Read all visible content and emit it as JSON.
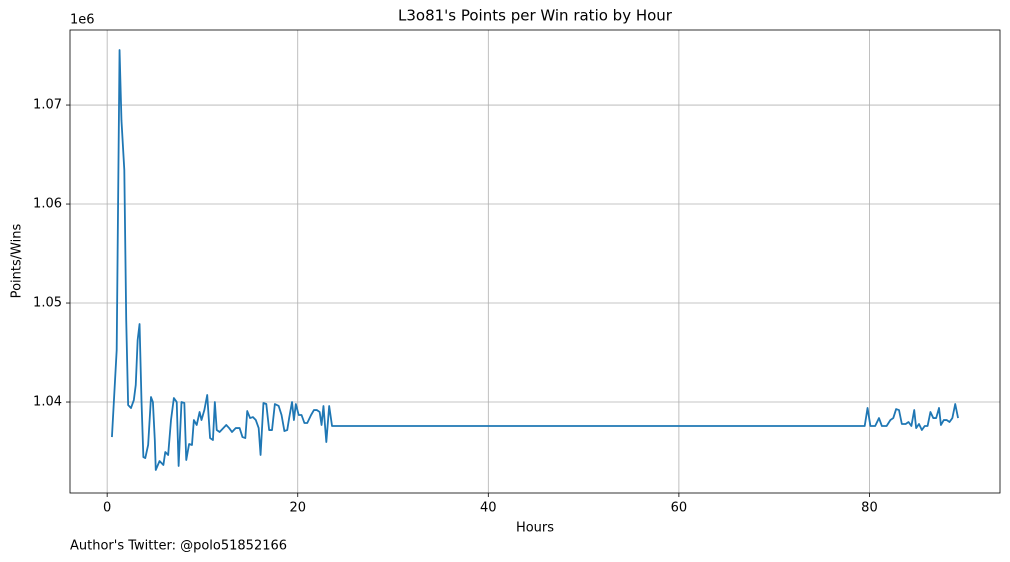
{
  "chart_data": {
    "type": "line",
    "title": "L3o81's Points per Win ratio by Hour",
    "xlabel": "Hours",
    "ylabel": "Points/Wins",
    "y_offset_label": "1e6",
    "annotation": "Author's Twitter: @polo51852166",
    "color": "#1f77b4",
    "grid": true,
    "xlim": [
      -3.9,
      93.7
    ],
    "ylim": [
      1.03081,
      1.07758
    ],
    "xticks": [
      0,
      20,
      40,
      60,
      80
    ],
    "yticks": [
      1.04,
      1.05,
      1.06,
      1.07
    ],
    "x": [
      0.5,
      1.0,
      1.3,
      1.5,
      1.8,
      2.0,
      2.2,
      2.5,
      2.8,
      3.0,
      3.2,
      3.4,
      3.6,
      3.8,
      4.0,
      4.3,
      4.6,
      4.8,
      5.0,
      5.1,
      5.5,
      5.9,
      6.1,
      6.4,
      6.7,
      7.0,
      7.3,
      7.5,
      7.8,
      8.1,
      8.3,
      8.6,
      8.9,
      9.1,
      9.4,
      9.7,
      9.9,
      10.2,
      10.5,
      10.8,
      11.1,
      11.3,
      11.5,
      11.8,
      12.2,
      12.5,
      12.8,
      13.1,
      13.5,
      13.9,
      14.2,
      14.5,
      14.7,
      15.0,
      15.3,
      15.6,
      15.9,
      16.1,
      16.4,
      16.7,
      17.0,
      17.3,
      17.6,
      18.0,
      18.3,
      18.6,
      18.9,
      19.1,
      19.4,
      19.6,
      19.8,
      20.1,
      20.4,
      20.7,
      21.0,
      21.4,
      21.7,
      22.0,
      22.3,
      22.5,
      22.7,
      23.0,
      23.3,
      23.6,
      79.5,
      79.8,
      80.1,
      80.6,
      81.0,
      81.3,
      81.8,
      82.2,
      82.5,
      82.8,
      83.1,
      83.4,
      83.8,
      84.1,
      84.4,
      84.7,
      84.9,
      85.2,
      85.5,
      85.8,
      86.1,
      86.4,
      86.7,
      87.0,
      87.3,
      87.5,
      87.8,
      88.1,
      88.4,
      88.7,
      89.0,
      89.3
    ],
    "values": [
      1.03646,
      1.04525,
      1.07556,
      1.06848,
      1.06343,
      1.04828,
      1.0397,
      1.03939,
      1.0402,
      1.04172,
      1.04626,
      1.04788,
      1.0402,
      1.03444,
      1.03434,
      1.03566,
      1.0405,
      1.04,
      1.03616,
      1.03313,
      1.03404,
      1.03364,
      1.03495,
      1.03465,
      1.03818,
      1.0404,
      1.04,
      1.03354,
      1.04,
      1.0399,
      1.03414,
      1.03576,
      1.03566,
      1.03818,
      1.03768,
      1.03899,
      1.03818,
      1.03919,
      1.04071,
      1.03636,
      1.03616,
      1.04,
      1.03717,
      1.03697,
      1.03737,
      1.03768,
      1.03737,
      1.03697,
      1.03737,
      1.03737,
      1.03646,
      1.03636,
      1.03909,
      1.03838,
      1.03848,
      1.03818,
      1.03737,
      1.03465,
      1.0399,
      1.0398,
      1.03717,
      1.03717,
      1.0398,
      1.0396,
      1.03869,
      1.03707,
      1.03717,
      1.03838,
      1.04,
      1.03818,
      1.0398,
      1.03869,
      1.03869,
      1.03788,
      1.03788,
      1.03869,
      1.03919,
      1.03919,
      1.03899,
      1.03768,
      1.0396,
      1.03596,
      1.0396,
      1.03758,
      1.03758,
      1.0394,
      1.03758,
      1.03758,
      1.03838,
      1.03758,
      1.03758,
      1.03818,
      1.03838,
      1.03929,
      1.03919,
      1.03778,
      1.03778,
      1.03798,
      1.03758,
      1.03919,
      1.03737,
      1.03778,
      1.03717,
      1.03758,
      1.03758,
      1.03899,
      1.03838,
      1.03838,
      1.0394,
      1.03768,
      1.03818,
      1.03818,
      1.03798,
      1.03838,
      1.0398,
      1.03838
    ]
  }
}
